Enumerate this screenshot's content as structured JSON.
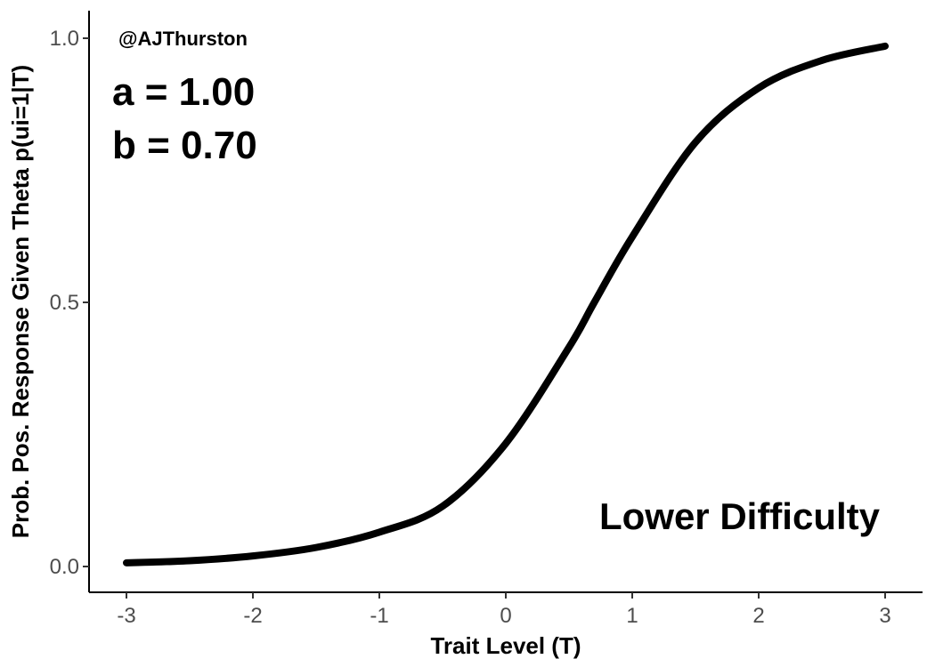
{
  "chart_data": {
    "type": "line",
    "xlabel": "Trait Level (T)",
    "ylabel": "Prob. Pos. Response Given Theta p(ui=1|T)",
    "xlim": [
      -3,
      3
    ],
    "ylim": [
      0,
      1
    ],
    "x_ticks": [
      "-3",
      "-2",
      "-1",
      "0",
      "1",
      "2",
      "3"
    ],
    "y_ticks": [
      "0.0",
      "0.5",
      "1.0"
    ],
    "grid": false,
    "legend": "none",
    "watermark": "@AJThurston",
    "params": {
      "a_label": "a = 1.00",
      "b_label": "b = 0.70"
    },
    "annotation": "Lower Difficulty",
    "series": [
      {
        "x": [
          -3,
          -2.5,
          -2,
          -1.5,
          -1,
          -0.5,
          0,
          0.5,
          0.7,
          1,
          1.5,
          2,
          2.5,
          3
        ],
        "values": [
          0.007,
          0.011,
          0.02,
          0.036,
          0.065,
          0.114,
          0.233,
          0.415,
          0.5,
          0.624,
          0.803,
          0.906,
          0.958,
          0.985
        ]
      }
    ],
    "colors": {
      "line": "#000000",
      "axis": "#000000",
      "tick_text": "#4d4d4d"
    }
  }
}
